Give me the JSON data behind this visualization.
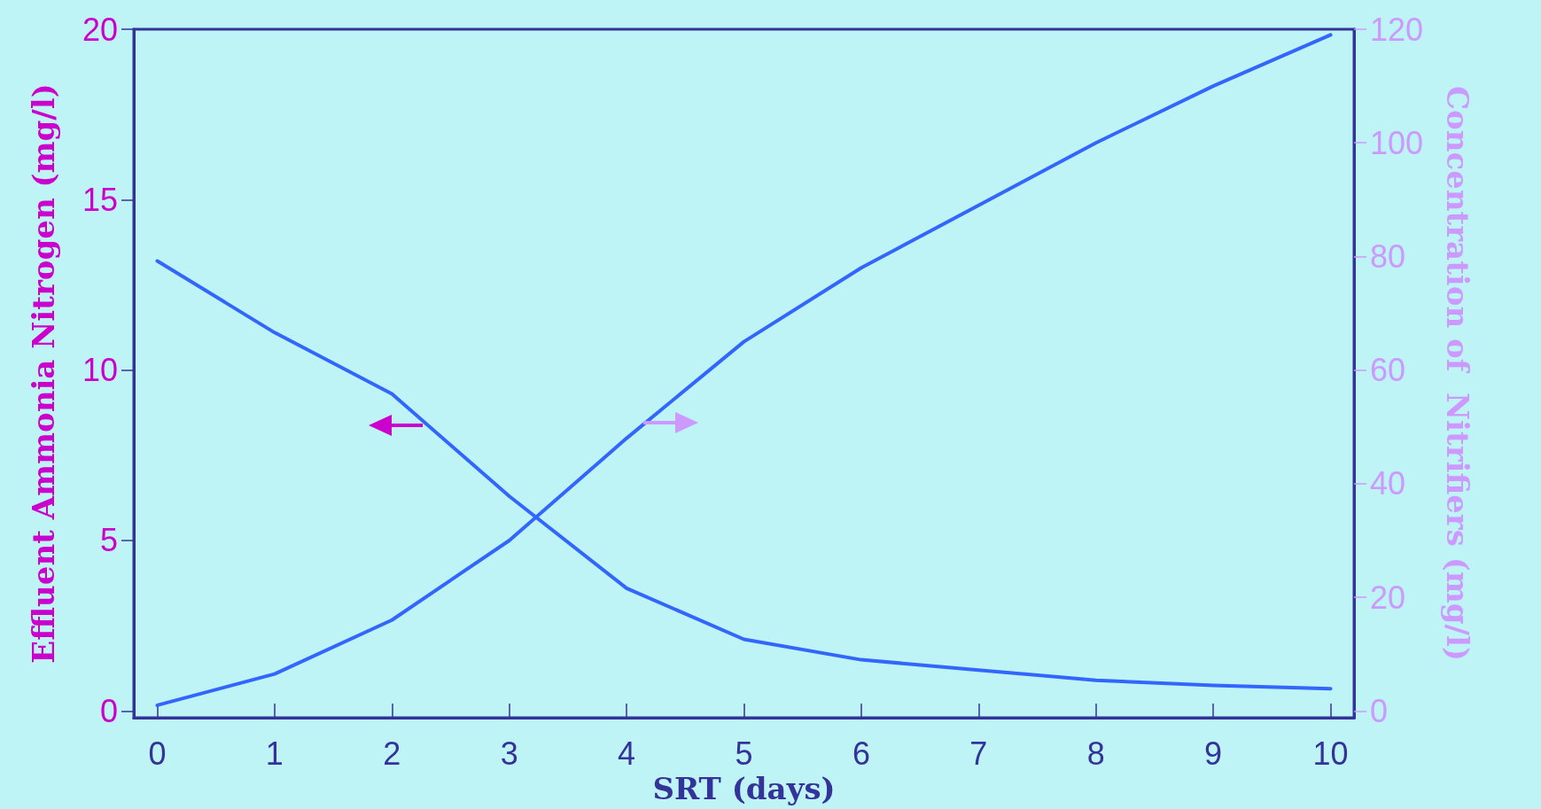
{
  "chart_data": {
    "type": "line",
    "xlabel": "SRT (days)",
    "ylabel": "Effluent Ammonia Nitrogen (mg/l)",
    "y2label": "Concentration of  Nitrifiers (mg/l)",
    "x": [
      0,
      1,
      2,
      3,
      4,
      5,
      6,
      7,
      8,
      9,
      10
    ],
    "series": [
      {
        "color": "#3366ff",
        "values": [
          13.2,
          11.1,
          9.3,
          6.3,
          3.6,
          2.1,
          1.5,
          1.2,
          0.9,
          0.75,
          0.65
        ]
      },
      {
        "color": "#3366ff",
        "axis": "y2",
        "values": [
          1,
          6.5,
          16,
          30,
          48,
          65,
          78,
          89,
          100,
          110,
          119
        ]
      }
    ],
    "xlim": [
      -0.2,
      10.2
    ],
    "xticks": [
      0,
      1,
      2,
      3,
      4,
      5,
      6,
      7,
      8,
      9,
      10
    ],
    "ylim": [
      -0.2,
      20
    ],
    "yticks": [
      0,
      5,
      10,
      15,
      20
    ],
    "y2lim": [
      -1.2,
      120
    ],
    "y2ticks": [
      0,
      20,
      40,
      60,
      80,
      100,
      120
    ],
    "marker": "none",
    "line_style": "solid"
  }
}
